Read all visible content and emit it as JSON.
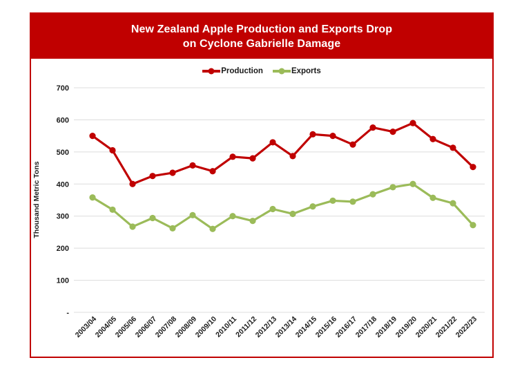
{
  "card": {
    "title_line1": "New Zealand Apple Production and Exports Drop",
    "title_line2": "on Cyclone Gabrielle Damage"
  },
  "colors": {
    "banner": "#C00000",
    "border": "#C00000",
    "production": "#C00000",
    "exports": "#9BBB59",
    "gridline": "#DCDCDC",
    "text": "#1a1a1a"
  },
  "chart_data": {
    "type": "line",
    "title": "New Zealand Apple Production and Exports Drop on Cyclone Gabrielle Damage",
    "xlabel": "",
    "ylabel": "Thousand Metric Tons",
    "ylim": [
      0,
      700
    ],
    "yticks": [
      700,
      600,
      500,
      400,
      300,
      200,
      100,
      0
    ],
    "ytick_labels": [
      "700",
      "600",
      "500",
      "400",
      "300",
      "200",
      "100",
      "-"
    ],
    "x_tick_rotation": 45,
    "grid": true,
    "legend_position": "top",
    "categories": [
      "2003/04",
      "2004/05",
      "2005/06",
      "2006/07",
      "2007/08",
      "2008/09",
      "2009/10",
      "2010/11",
      "2011/12",
      "2012/13",
      "2013/14",
      "2014/15",
      "2015/16",
      "2016/17",
      "2017/18",
      "2018/19",
      "2019/20",
      "2020/21",
      "2021/22",
      "2022/23"
    ],
    "series": [
      {
        "name": "Production",
        "color": "#C00000",
        "values": [
          550,
          505,
          400,
          425,
          435,
          458,
          440,
          485,
          480,
          530,
          487,
          555,
          550,
          523,
          576,
          563,
          590,
          540,
          513,
          453
        ]
      },
      {
        "name": "Exports",
        "color": "#9BBB59",
        "values": [
          358,
          320,
          267,
          294,
          262,
          303,
          260,
          300,
          285,
          322,
          307,
          330,
          348,
          345,
          368,
          390,
          400,
          357,
          340,
          272
        ]
      }
    ]
  }
}
